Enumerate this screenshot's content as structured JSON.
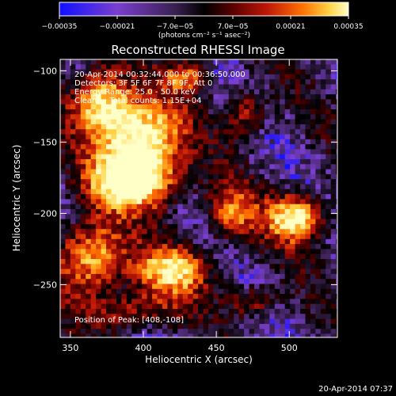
{
  "chart_data": {
    "type": "heatmap",
    "title": "Reconstructed RHESSI Image",
    "xlabel": "Heliocentric X (arcsec)",
    "ylabel": "Heliocentric Y (arcsec)",
    "xlim": [
      343,
      533
    ],
    "ylim": [
      -287,
      -92
    ],
    "x_ticks": [
      350,
      400,
      450,
      500
    ],
    "x_tick_labels": [
      "350",
      "400",
      "450",
      "500"
    ],
    "y_ticks": [
      -100,
      -150,
      -200,
      -250
    ],
    "y_tick_labels": [
      "−100",
      "−150",
      "−200",
      "−250"
    ],
    "colorbar": {
      "range": [
        -0.00035,
        0.00035
      ],
      "ticks": [
        -0.00035,
        -0.00021,
        -7e-05,
        7e-05,
        0.00021,
        0.00035
      ],
      "tick_labels": [
        "−0.00035",
        "−0.00021",
        "−7.0e−05",
        "7.0e−05",
        "0.00021",
        "0.00035"
      ],
      "unit_label": "(photons cm⁻² s⁻¹ asec⁻²)",
      "colors": [
        "#1010ff",
        "#7a3fd0",
        "#3a2050",
        "#000000",
        "#5a0000",
        "#c01808",
        "#ff7000",
        "#ffd040",
        "#ffffc8"
      ]
    },
    "annotations": [
      "20-Apr-2014 00:32:44.000 to 00:36:50.000",
      "Detectors: 3F 5F 6F 7F 8F 9F, Att 0",
      "Energy Range: 25.0 - 50.0 keV",
      "Clean     Total counts: 1.15E+04"
    ],
    "peak_label": "Position of Peak: [408,-108]",
    "peak": [
      408,
      -108
    ],
    "sources": [
      {
        "x": 372,
        "y": -122,
        "sx": 14,
        "sy": 18,
        "a": 0.85
      },
      {
        "x": 400,
        "y": -148,
        "sx": 18,
        "sy": 20,
        "a": 1.0
      },
      {
        "x": 392,
        "y": -178,
        "sx": 22,
        "sy": 14,
        "a": 0.9
      },
      {
        "x": 365,
        "y": -230,
        "sx": 16,
        "sy": 18,
        "a": 0.8
      },
      {
        "x": 420,
        "y": -240,
        "sx": 18,
        "sy": 12,
        "a": 0.75
      },
      {
        "x": 505,
        "y": -203,
        "sx": 14,
        "sy": 12,
        "a": 0.9
      },
      {
        "x": 460,
        "y": -200,
        "sx": 12,
        "sy": 14,
        "a": 0.55
      },
      {
        "x": 470,
        "y": -130,
        "sx": 10,
        "sy": 12,
        "a": 0.5
      },
      {
        "x": 430,
        "y": -105,
        "sx": 10,
        "sy": 8,
        "a": 0.55
      },
      {
        "x": 395,
        "y": -268,
        "sx": 20,
        "sy": 10,
        "a": 0.45
      },
      {
        "x": 475,
        "y": -262,
        "sx": 12,
        "sy": 8,
        "a": 0.45
      }
    ]
  },
  "footer": {
    "timestamp": "20-Apr-2014 07:37"
  }
}
